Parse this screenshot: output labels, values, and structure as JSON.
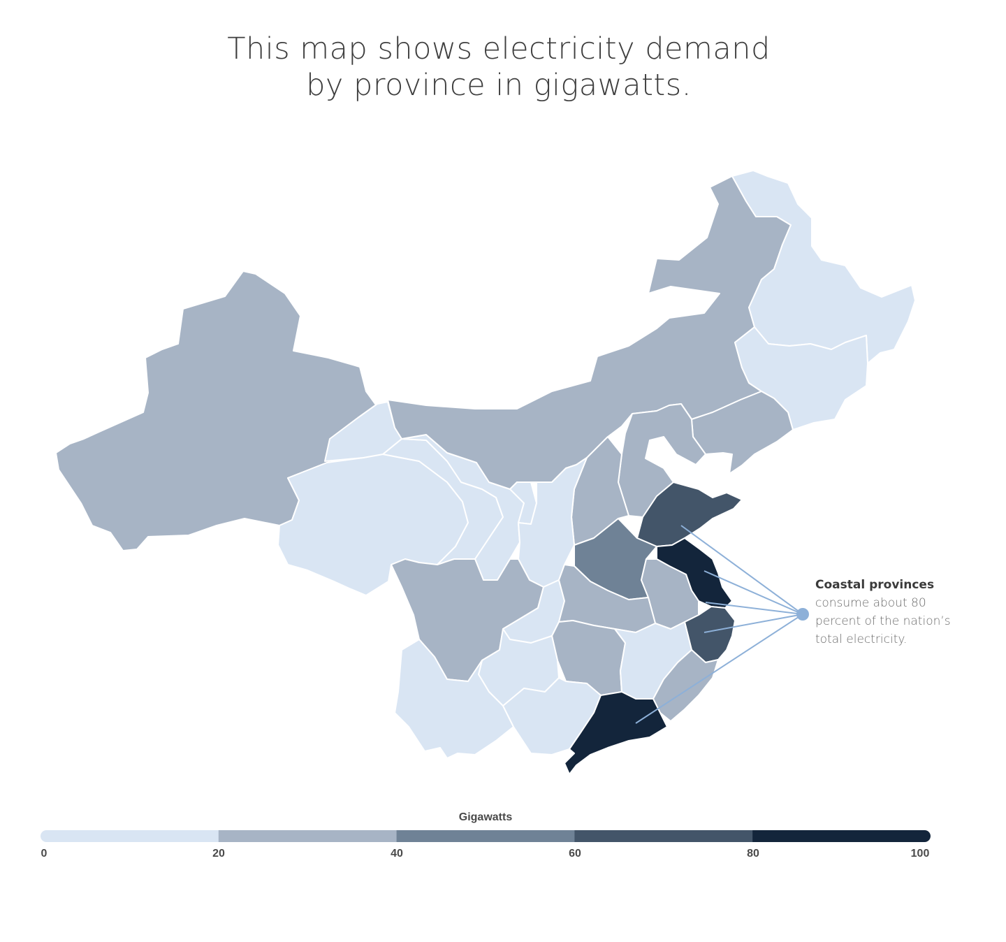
{
  "title": {
    "line1": "This map shows electricity demand",
    "line2": "by province in gigawatts."
  },
  "annotation": {
    "heading": "Coastal provinces",
    "line1": "consume about 80",
    "line2": "percent of the nation’s",
    "line3": "total electricity."
  },
  "legend": {
    "title": "Gigawatts",
    "ticks": [
      "0",
      "20",
      "40",
      "60",
      "80",
      "100"
    ],
    "bins": [
      {
        "range": [
          0,
          20
        ],
        "color": "#d9e5f3"
      },
      {
        "range": [
          20,
          40
        ],
        "color": "#a7b4c5"
      },
      {
        "range": [
          40,
          60
        ],
        "color": "#6f8296"
      },
      {
        "range": [
          60,
          80
        ],
        "color": "#435569"
      },
      {
        "range": [
          80,
          100
        ],
        "color": "#13253b"
      }
    ]
  },
  "colors": {
    "line": "#8db0d8",
    "dot": "#8db0d8",
    "border": "#ffffff"
  },
  "map_data": {
    "type": "choropleth",
    "provinces": [
      {
        "name": "Xinjiang",
        "bin": 1
      },
      {
        "name": "Tibet",
        "bin": 0
      },
      {
        "name": "Qinghai",
        "bin": 0
      },
      {
        "name": "Gansu",
        "bin": 0
      },
      {
        "name": "Inner Mongolia",
        "bin": 1
      },
      {
        "name": "Heilongjiang",
        "bin": 0
      },
      {
        "name": "Jilin",
        "bin": 0
      },
      {
        "name": "Liaoning",
        "bin": 1
      },
      {
        "name": "Hebei",
        "bin": 1
      },
      {
        "name": "Shanxi",
        "bin": 1
      },
      {
        "name": "Shaanxi",
        "bin": 0
      },
      {
        "name": "Ningxia",
        "bin": 0
      },
      {
        "name": "Shandong",
        "bin": 3
      },
      {
        "name": "Henan",
        "bin": 2
      },
      {
        "name": "Jiangsu",
        "bin": 4
      },
      {
        "name": "Anhui",
        "bin": 1
      },
      {
        "name": "Zhejiang",
        "bin": 3
      },
      {
        "name": "Sichuan",
        "bin": 1
      },
      {
        "name": "Chongqing",
        "bin": 0
      },
      {
        "name": "Hubei",
        "bin": 1
      },
      {
        "name": "Hunan",
        "bin": 1
      },
      {
        "name": "Jiangxi",
        "bin": 0
      },
      {
        "name": "Fujian",
        "bin": 1
      },
      {
        "name": "Guizhou",
        "bin": 0
      },
      {
        "name": "Yunnan",
        "bin": 0
      },
      {
        "name": "Guangxi",
        "bin": 0
      },
      {
        "name": "Guangdong",
        "bin": 4
      }
    ]
  }
}
